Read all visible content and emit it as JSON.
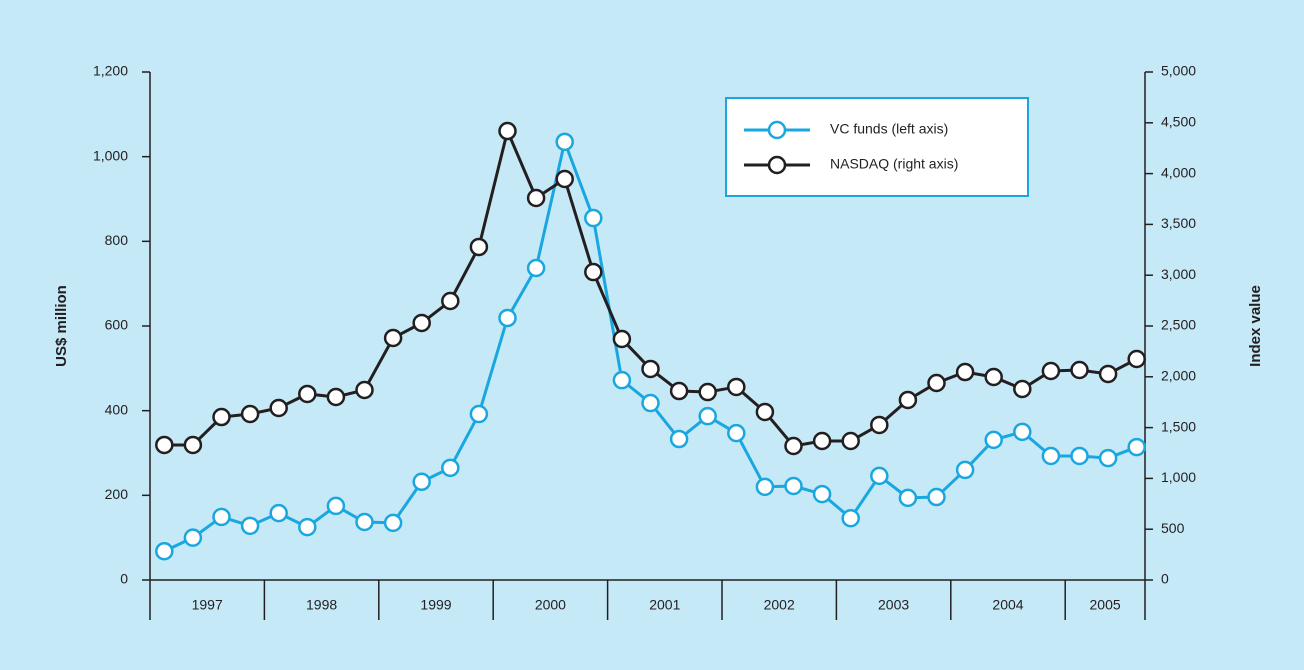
{
  "chart_data": {
    "type": "line",
    "y_label": "US$ million",
    "y2_label": "Index value",
    "categories": [
      "1997",
      null,
      null,
      null,
      "1998",
      null,
      null,
      null,
      "1999",
      null,
      null,
      null,
      "2000",
      null,
      null,
      null,
      "2001",
      null,
      null,
      null,
      "2002",
      null,
      null,
      null,
      "2003",
      null,
      null,
      null,
      "2004",
      null,
      null,
      null,
      "2005",
      null,
      null
    ],
    "series": [
      {
        "name": "VC funds (left axis)",
        "color": "#1aa7df",
        "axis": "y",
        "values": [
          68,
          100,
          149,
          128,
          158,
          125,
          175,
          137,
          135,
          232,
          265,
          392,
          619,
          737,
          1035,
          855,
          472,
          418,
          333,
          387,
          347,
          220,
          222,
          203,
          146,
          246,
          194,
          196,
          260,
          331,
          350,
          293,
          293,
          288,
          314
        ]
      },
      {
        "name": "NASDAQ (right axis)",
        "color": "#231f20",
        "axis": "y2",
        "values": [
          1329,
          1329,
          1604,
          1634,
          1693,
          1831,
          1801,
          1870,
          2382,
          2530,
          2746,
          3278,
          4419,
          3760,
          3947,
          3031,
          2372,
          2077,
          1860,
          1850,
          1900,
          1654,
          1319,
          1368,
          1368,
          1526,
          1772,
          1939,
          2047,
          1998,
          1880,
          2057,
          2067,
          2028,
          2175
        ]
      }
    ],
    "ylim": [
      0,
      1200
    ],
    "yticks": [
      0,
      200,
      400,
      600,
      800,
      {
        "value": 1000,
        "label": "1,000"
      },
      {
        "value": 1200,
        "label": "1,200"
      }
    ],
    "y2lim": [
      0,
      5000
    ],
    "y2ticks": [
      0,
      500,
      {
        "value": 1000,
        "label": "1,000"
      },
      {
        "value": 1500,
        "label": "1,500"
      },
      {
        "value": 2000,
        "label": "2,000"
      },
      {
        "value": 2500,
        "label": "2,500"
      },
      {
        "value": 3000,
        "label": "3,000"
      },
      {
        "value": 3500,
        "label": "3,500"
      },
      {
        "value": 4000,
        "label": "4,000"
      },
      {
        "value": 4500,
        "label": "4,500"
      },
      {
        "value": 5000,
        "label": "5,000"
      }
    ],
    "legend": "upper right"
  }
}
